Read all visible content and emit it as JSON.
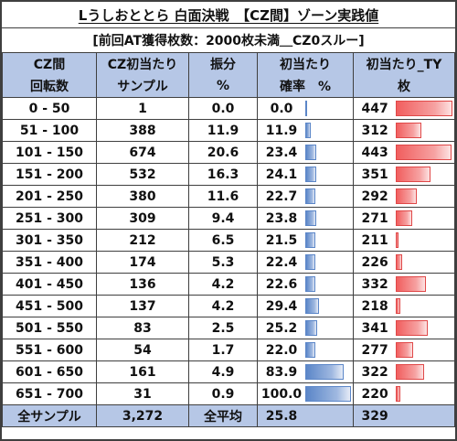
{
  "title": "Lうしおととら 白面決戦　【CZ間】ゾーン実践値",
  "subtitle": "[前回AT獲得枚数：2000枚未満＿CZ0スルー]",
  "headers": {
    "col1": [
      "CZ間",
      "回転数"
    ],
    "col2": [
      "CZ初当たり",
      "サンプル"
    ],
    "col3": [
      "振分",
      "%"
    ],
    "col4": [
      "初当たり",
      "確率　%"
    ],
    "col5": [
      "初当たり_TY",
      "枚"
    ]
  },
  "rows": [
    {
      "range": "0 - 50",
      "samples": "1",
      "dist": "0.0",
      "rate": "0.0",
      "rate_value": 0.0,
      "ty": "447",
      "ty_value": 447
    },
    {
      "range": "51 - 100",
      "samples": "388",
      "dist": "11.9",
      "rate": "11.9",
      "rate_value": 11.9,
      "ty": "312",
      "ty_value": 312
    },
    {
      "range": "101 - 150",
      "samples": "674",
      "dist": "20.6",
      "rate": "23.4",
      "rate_value": 23.4,
      "ty": "443",
      "ty_value": 443
    },
    {
      "range": "151 - 200",
      "samples": "532",
      "dist": "16.3",
      "rate": "24.1",
      "rate_value": 24.1,
      "ty": "351",
      "ty_value": 351
    },
    {
      "range": "201 - 250",
      "samples": "380",
      "dist": "11.6",
      "rate": "22.7",
      "rate_value": 22.7,
      "ty": "292",
      "ty_value": 292
    },
    {
      "range": "251 - 300",
      "samples": "309",
      "dist": "9.4",
      "rate": "23.8",
      "rate_value": 23.8,
      "ty": "271",
      "ty_value": 271
    },
    {
      "range": "301 - 350",
      "samples": "212",
      "dist": "6.5",
      "rate": "21.5",
      "rate_value": 21.5,
      "ty": "211",
      "ty_value": 211
    },
    {
      "range": "351 - 400",
      "samples": "174",
      "dist": "5.3",
      "rate": "22.4",
      "rate_value": 22.4,
      "ty": "226",
      "ty_value": 226
    },
    {
      "range": "401 - 450",
      "samples": "136",
      "dist": "4.2",
      "rate": "22.6",
      "rate_value": 22.6,
      "ty": "332",
      "ty_value": 332
    },
    {
      "range": "451 - 500",
      "samples": "137",
      "dist": "4.2",
      "rate": "29.4",
      "rate_value": 29.4,
      "ty": "218",
      "ty_value": 218
    },
    {
      "range": "501 - 550",
      "samples": "83",
      "dist": "2.5",
      "rate": "25.2",
      "rate_value": 25.2,
      "ty": "341",
      "ty_value": 341
    },
    {
      "range": "551 - 600",
      "samples": "54",
      "dist": "1.7",
      "rate": "22.0",
      "rate_value": 22.0,
      "ty": "277",
      "ty_value": 277
    },
    {
      "range": "601 - 650",
      "samples": "161",
      "dist": "4.9",
      "rate": "83.9",
      "rate_value": 83.9,
      "ty": "322",
      "ty_value": 322
    },
    {
      "range": "651 - 700",
      "samples": "31",
      "dist": "0.9",
      "rate": "100.0",
      "rate_value": 100.0,
      "ty": "220",
      "ty_value": 220
    }
  ],
  "total": {
    "label": "全サンプル",
    "samples": "3,272",
    "dist_label": "全平均",
    "rate": "25.8",
    "ty": "329"
  },
  "scales": {
    "rate_max": 100,
    "ty_min": 200,
    "ty_max": 447
  },
  "colors": {
    "header_bg": "#b6c7e6",
    "rate_bar": "#5b86c8",
    "ty_bar": "#f15e5e"
  }
}
